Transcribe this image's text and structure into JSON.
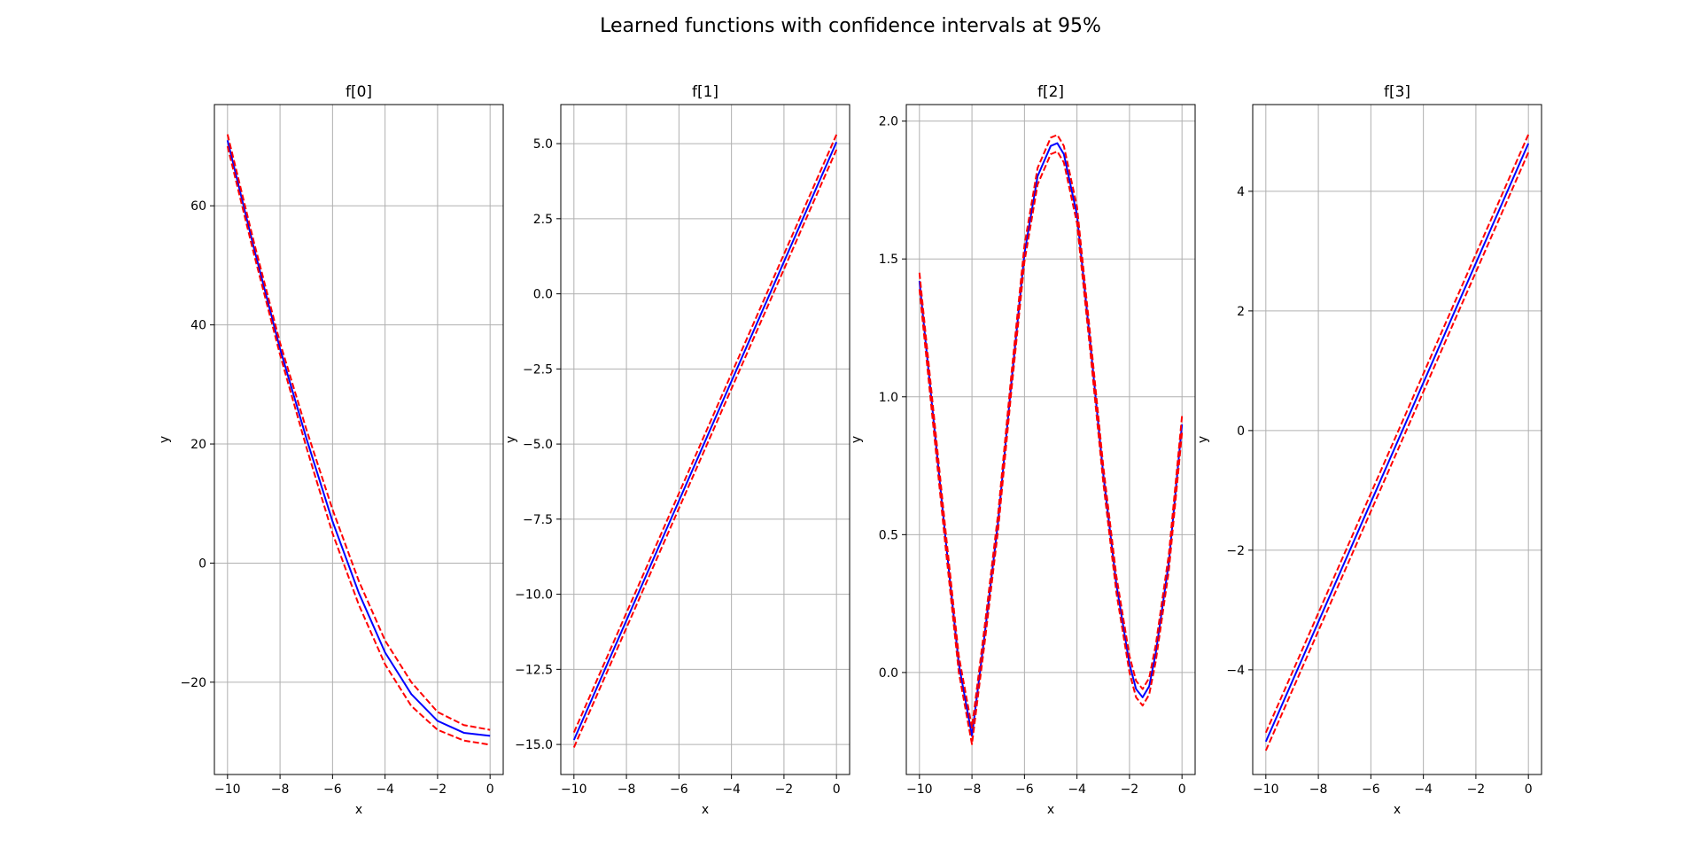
{
  "figure": {
    "title": "Learned functions with confidence intervals at 95%"
  },
  "colors": {
    "mean": "#0000ff",
    "ci": "#ff0000",
    "grid": "#b0b0b0",
    "axes": "#000000"
  },
  "chart_data": [
    {
      "type": "line",
      "title": "f[0]",
      "xlabel": "x",
      "ylabel": "y",
      "xlim": [
        -10.5,
        0.5
      ],
      "ylim": [
        -35.5,
        77.0
      ],
      "xticks": [
        -10,
        -8,
        -6,
        -4,
        -2,
        0
      ],
      "yticks": [
        -20,
        0,
        20,
        40,
        60
      ],
      "grid": true,
      "x": [
        -10,
        -9,
        -8,
        -7,
        -6,
        -5,
        -4,
        -3,
        -2,
        -1,
        0
      ],
      "series": [
        {
          "role": "mean",
          "values": [
            71.0,
            53.0,
            36.0,
            21.0,
            7.0,
            -5.0,
            -15.0,
            -22.0,
            -26.5,
            -28.5,
            -29.0
          ]
        },
        {
          "role": "upper",
          "values": [
            72.0,
            54.0,
            37.0,
            22.5,
            9.0,
            -3.0,
            -13.0,
            -20.0,
            -25.0,
            -27.2,
            -28.0
          ]
        },
        {
          "role": "lower",
          "values": [
            70.0,
            52.0,
            35.0,
            19.5,
            5.0,
            -7.0,
            -17.0,
            -24.0,
            -28.0,
            -29.8,
            -30.5
          ]
        }
      ]
    },
    {
      "type": "line",
      "title": "f[1]",
      "xlabel": "x",
      "ylabel": "y",
      "xlim": [
        -10.5,
        0.5
      ],
      "ylim": [
        -16.0,
        6.3
      ],
      "xticks": [
        -10,
        -8,
        -6,
        -4,
        -2,
        0
      ],
      "yticks": [
        -15.0,
        -12.5,
        -10.0,
        -7.5,
        -5.0,
        -2.5,
        0.0,
        2.5,
        5.0
      ],
      "grid": true,
      "x": [
        -10,
        0
      ],
      "series": [
        {
          "role": "mean",
          "values": [
            -14.85,
            5.05
          ]
        },
        {
          "role": "upper",
          "values": [
            -14.6,
            5.3
          ]
        },
        {
          "role": "lower",
          "values": [
            -15.1,
            4.8
          ]
        }
      ]
    },
    {
      "type": "line",
      "title": "f[2]",
      "xlabel": "x",
      "ylabel": "y",
      "xlim": [
        -10.5,
        0.5
      ],
      "ylim": [
        -0.37,
        2.06
      ],
      "xticks": [
        -10,
        -8,
        -6,
        -4,
        -2,
        0
      ],
      "yticks": [
        0.0,
        0.5,
        1.0,
        1.5,
        2.0
      ],
      "grid": true,
      "x": [
        -10,
        -9.5,
        -9,
        -8.5,
        -8,
        -7.5,
        -7,
        -6.5,
        -6,
        -5.5,
        -5,
        -4.75,
        -4.5,
        -4,
        -3.5,
        -3,
        -2.5,
        -2,
        -1.75,
        -1.5,
        -1.25,
        -1,
        -0.5,
        0
      ],
      "series": [
        {
          "role": "mean",
          "values": [
            1.42,
            0.95,
            0.48,
            0.03,
            -0.23,
            0.15,
            0.55,
            1.05,
            1.52,
            1.8,
            1.91,
            1.92,
            1.88,
            1.66,
            1.2,
            0.72,
            0.32,
            0.03,
            -0.06,
            -0.09,
            -0.05,
            0.07,
            0.4,
            0.9
          ]
        },
        {
          "role": "upper",
          "values": [
            1.45,
            0.98,
            0.51,
            0.06,
            -0.2,
            0.18,
            0.58,
            1.08,
            1.55,
            1.83,
            1.94,
            1.95,
            1.91,
            1.69,
            1.23,
            0.75,
            0.35,
            0.06,
            -0.03,
            -0.06,
            -0.02,
            0.1,
            0.43,
            0.93
          ]
        },
        {
          "role": "lower",
          "values": [
            1.39,
            0.92,
            0.45,
            0.0,
            -0.26,
            0.12,
            0.52,
            1.02,
            1.49,
            1.77,
            1.88,
            1.89,
            1.85,
            1.63,
            1.17,
            0.69,
            0.29,
            0.0,
            -0.09,
            -0.12,
            -0.08,
            0.04,
            0.37,
            0.87
          ]
        }
      ]
    },
    {
      "type": "line",
      "title": "f[3]",
      "xlabel": "x",
      "ylabel": "y",
      "xlim": [
        -10.5,
        0.5
      ],
      "ylim": [
        -5.75,
        5.45
      ],
      "xticks": [
        -10,
        -8,
        -6,
        -4,
        -2,
        0
      ],
      "yticks": [
        -4,
        -2,
        0,
        2,
        4
      ],
      "grid": true,
      "x": [
        -10,
        0
      ],
      "series": [
        {
          "role": "mean",
          "values": [
            -5.2,
            4.8
          ]
        },
        {
          "role": "upper",
          "values": [
            -5.05,
            4.95
          ]
        },
        {
          "role": "lower",
          "values": [
            -5.35,
            4.65
          ]
        }
      ]
    }
  ]
}
